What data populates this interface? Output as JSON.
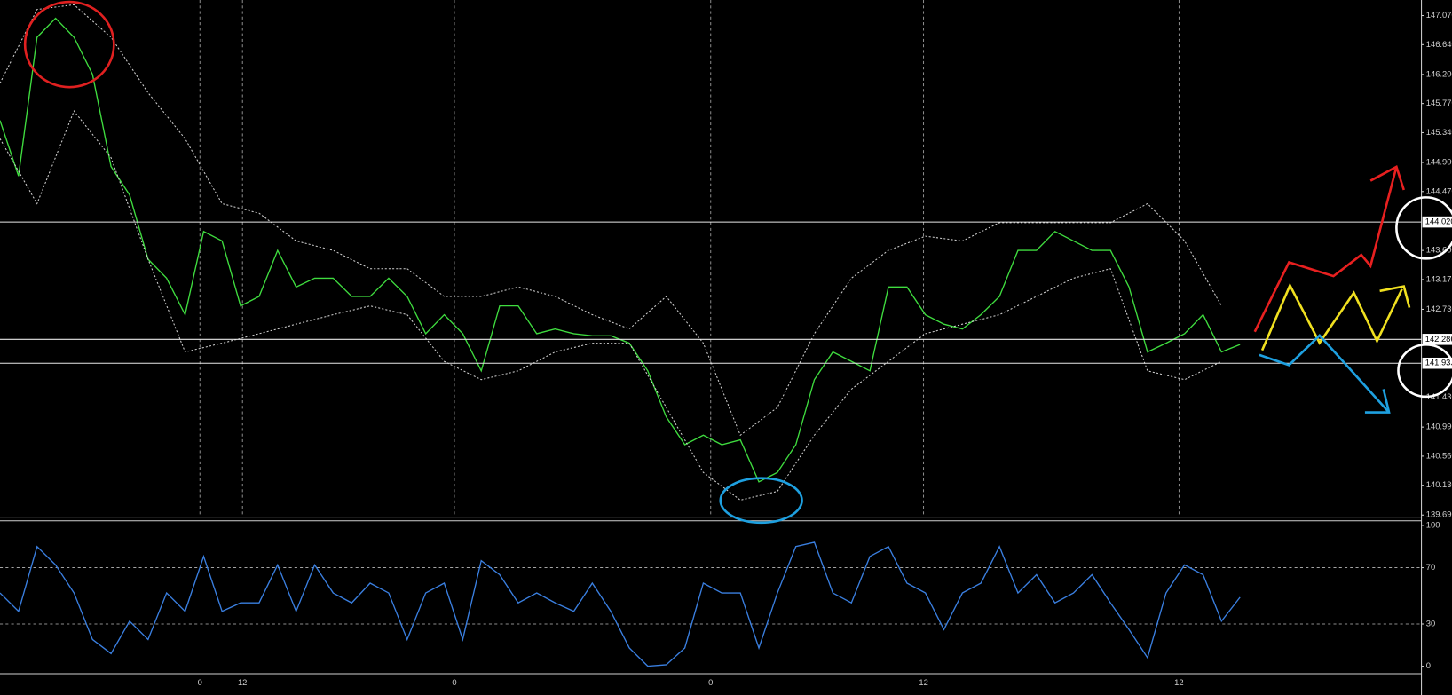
{
  "chart_data": [
    {
      "type": "line",
      "xlim": [
        0,
        384
      ],
      "xticks": [
        {
          "value": 54,
          "label": "0"
        },
        {
          "value": 65.5,
          "label": "12"
        },
        {
          "value": 122.75,
          "label": "0"
        },
        {
          "value": 192,
          "label": "0"
        },
        {
          "value": 249.5,
          "label": "12"
        },
        {
          "value": 318.5,
          "label": "12"
        }
      ],
      "ylim": [
        139.66,
        147.3
      ],
      "yticks": [
        {
          "value": 147.07,
          "label": "147.070"
        },
        {
          "value": 146.64,
          "label": "146.640"
        },
        {
          "value": 146.2,
          "label": "146.200"
        },
        {
          "value": 145.77,
          "label": "145.770"
        },
        {
          "value": 145.34,
          "label": "145.340"
        },
        {
          "value": 144.9,
          "label": "144.900"
        },
        {
          "value": 144.47,
          "label": "144.470"
        },
        {
          "value": 143.6,
          "label": "143.600"
        },
        {
          "value": 143.17,
          "label": "143.170"
        },
        {
          "value": 142.73,
          "label": "142.730"
        },
        {
          "value": 141.43,
          "label": "141.430"
        },
        {
          "value": 140.99,
          "label": "140.990"
        },
        {
          "value": 140.56,
          "label": "140.560"
        },
        {
          "value": 140.13,
          "label": "140.130"
        },
        {
          "value": 139.69,
          "label": "139.690"
        }
      ],
      "hlines": [
        {
          "value": 144.02,
          "label": "144.020"
        },
        {
          "value": 142.286,
          "label": "142.286"
        },
        {
          "value": 141.933,
          "label": "141.933"
        }
      ],
      "series": [
        {
          "color": "#3fdc3f",
          "dashed": false,
          "x": [
            0,
            5,
            10,
            15,
            20,
            25,
            30,
            35,
            40,
            45,
            50,
            55,
            60,
            65,
            70,
            75,
            80,
            85,
            90,
            95,
            100,
            105,
            110,
            115,
            120,
            125,
            130,
            135,
            140,
            145,
            150,
            155,
            160,
            165,
            170,
            175,
            180,
            185,
            190,
            195,
            200,
            205,
            210,
            215,
            220,
            225,
            230,
            235,
            240,
            245,
            250,
            255,
            260,
            265,
            270,
            275,
            280,
            285,
            290,
            295,
            300,
            305,
            310,
            315,
            320,
            325,
            330,
            335
          ],
          "values": [
            145.52,
            144.7,
            146.75,
            147.03,
            146.75,
            146.2,
            144.84,
            144.42,
            143.47,
            143.19,
            142.65,
            143.88,
            143.74,
            142.78,
            142.92,
            143.6,
            143.06,
            143.19,
            143.19,
            142.92,
            142.92,
            143.19,
            142.92,
            142.37,
            142.65,
            142.37,
            141.82,
            142.78,
            142.78,
            142.37,
            142.44,
            142.37,
            142.34,
            142.34,
            142.23,
            141.82,
            141.14,
            140.73,
            140.87,
            140.73,
            140.8,
            140.18,
            140.32,
            140.73,
            141.69,
            142.1,
            141.96,
            141.82,
            143.06,
            143.06,
            142.65,
            142.51,
            142.44,
            142.65,
            142.92,
            143.6,
            143.6,
            143.88,
            143.74,
            143.6,
            143.6,
            143.06,
            142.1,
            142.23,
            142.37,
            142.65,
            142.1,
            142.21
          ]
        },
        {
          "color": "#cfcfcf",
          "dashed": true,
          "x": [
            0,
            10,
            20,
            30,
            40,
            50,
            60,
            70,
            80,
            90,
            100,
            110,
            120,
            130,
            140,
            150,
            160,
            170,
            180,
            190,
            200,
            210,
            220,
            230,
            240,
            250,
            260,
            270,
            280,
            290,
            300,
            310,
            320,
            330
          ],
          "values": [
            146.07,
            147.16,
            147.23,
            146.75,
            145.93,
            145.25,
            144.29,
            144.15,
            143.74,
            143.6,
            143.33,
            143.33,
            142.92,
            142.92,
            143.06,
            142.92,
            142.65,
            142.44,
            142.92,
            142.23,
            140.87,
            141.28,
            142.37,
            143.19,
            143.6,
            143.81,
            143.74,
            144.01,
            144.01,
            144.01,
            144.01,
            144.29,
            143.74,
            142.78
          ]
        },
        {
          "color": "#cfcfcf",
          "dashed": true,
          "x": [
            0,
            10,
            20,
            30,
            40,
            50,
            60,
            70,
            80,
            90,
            100,
            110,
            120,
            130,
            140,
            150,
            160,
            170,
            180,
            190,
            200,
            210,
            220,
            230,
            240,
            250,
            260,
            270,
            280,
            290,
            300,
            310,
            320,
            330
          ],
          "values": [
            145.25,
            144.29,
            145.66,
            144.97,
            143.47,
            142.1,
            142.23,
            142.37,
            142.51,
            142.65,
            142.78,
            142.65,
            141.96,
            141.69,
            141.82,
            142.1,
            142.23,
            142.23,
            141.28,
            140.32,
            139.91,
            140.04,
            140.87,
            141.55,
            141.96,
            142.37,
            142.51,
            142.65,
            142.92,
            143.19,
            143.33,
            141.82,
            141.69,
            141.96
          ]
        }
      ]
    },
    {
      "type": "line",
      "xlim": [
        0,
        384
      ],
      "ylim": [
        -5.3,
        103.3
      ],
      "yticks": [
        100,
        70,
        30,
        0
      ],
      "levels": [
        70,
        30
      ],
      "series": [
        {
          "color": "#3a7fe0",
          "dashed": false,
          "x": [
            0,
            5,
            10,
            15,
            20,
            25,
            30,
            35,
            40,
            45,
            50,
            55,
            60,
            65,
            70,
            75,
            80,
            85,
            90,
            95,
            100,
            105,
            110,
            115,
            120,
            125,
            130,
            135,
            140,
            145,
            150,
            155,
            160,
            165,
            170,
            175,
            180,
            185,
            190,
            195,
            200,
            205,
            210,
            215,
            220,
            225,
            230,
            235,
            240,
            245,
            250,
            255,
            260,
            265,
            270,
            275,
            280,
            285,
            290,
            295,
            300,
            305,
            310,
            315,
            320,
            325,
            330,
            335
          ],
          "values": [
            52,
            39,
            85,
            72,
            52,
            19,
            9,
            32,
            19,
            52,
            39,
            78,
            39,
            45,
            45,
            72,
            39,
            72,
            52,
            45,
            59,
            52,
            19,
            52,
            59,
            19,
            75,
            65,
            45,
            52,
            45,
            39,
            59,
            39,
            13,
            0,
            1,
            13,
            59,
            52,
            52,
            13,
            52,
            85,
            88,
            52,
            45,
            78,
            85,
            59,
            52,
            26,
            52,
            59,
            85,
            52,
            65,
            45,
            52,
            65,
            45,
            26,
            6,
            52,
            72,
            65,
            32,
            49
          ]
        }
      ]
    }
  ]
}
